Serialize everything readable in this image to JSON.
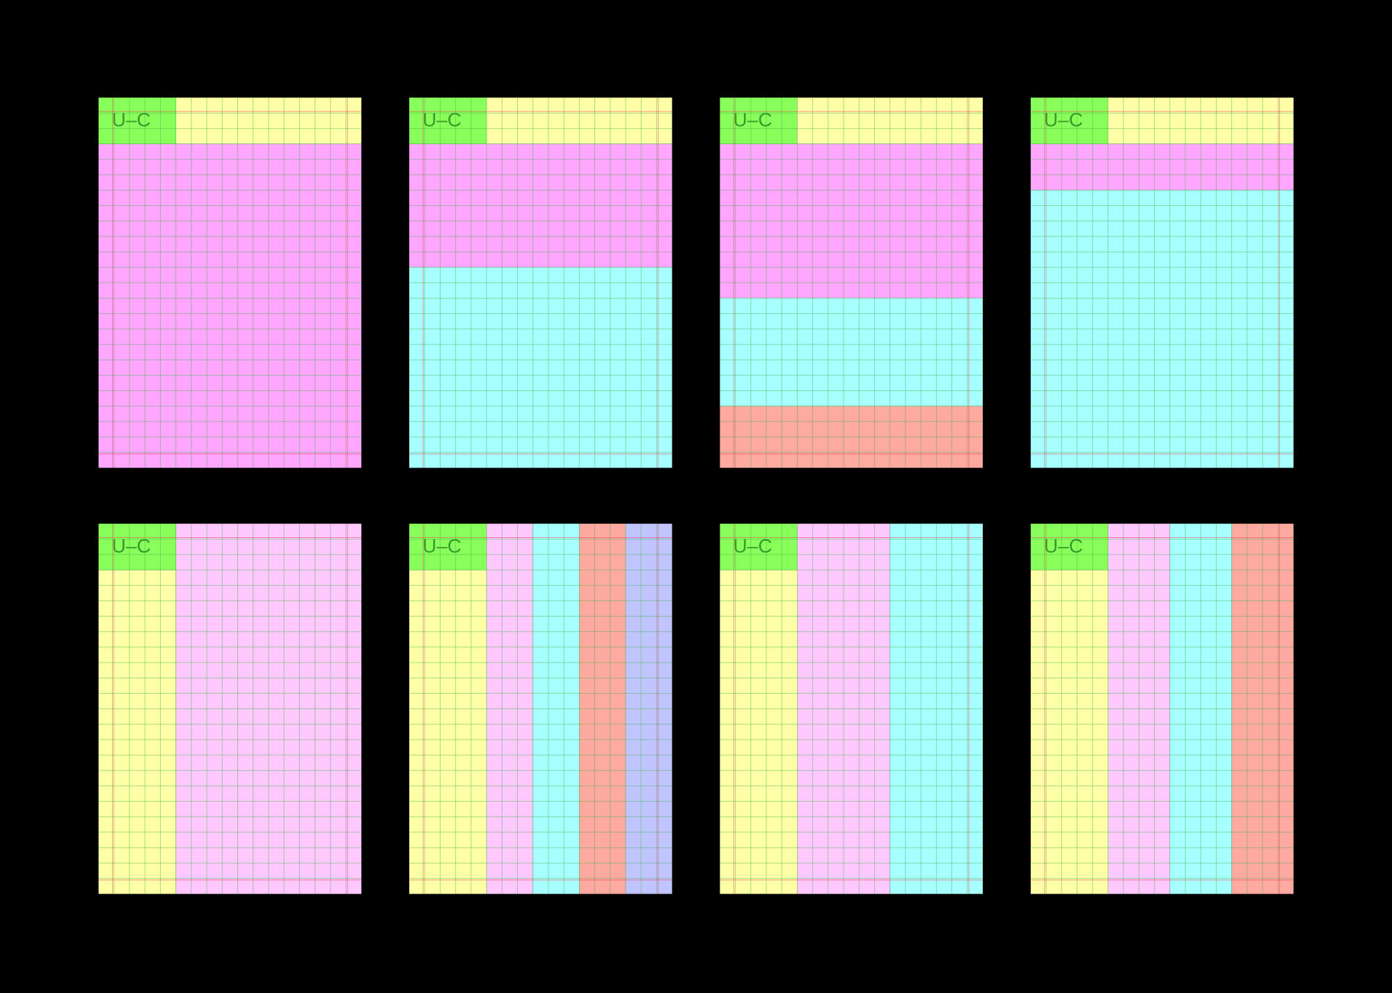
{
  "panels": [
    {
      "label": "U–C"
    },
    {
      "label": "U–C"
    },
    {
      "label": "U–C"
    },
    {
      "label": "U–C"
    },
    {
      "label": "U–C"
    },
    {
      "label": "U–C"
    },
    {
      "label": "U–C"
    },
    {
      "label": "U–C"
    }
  ]
}
